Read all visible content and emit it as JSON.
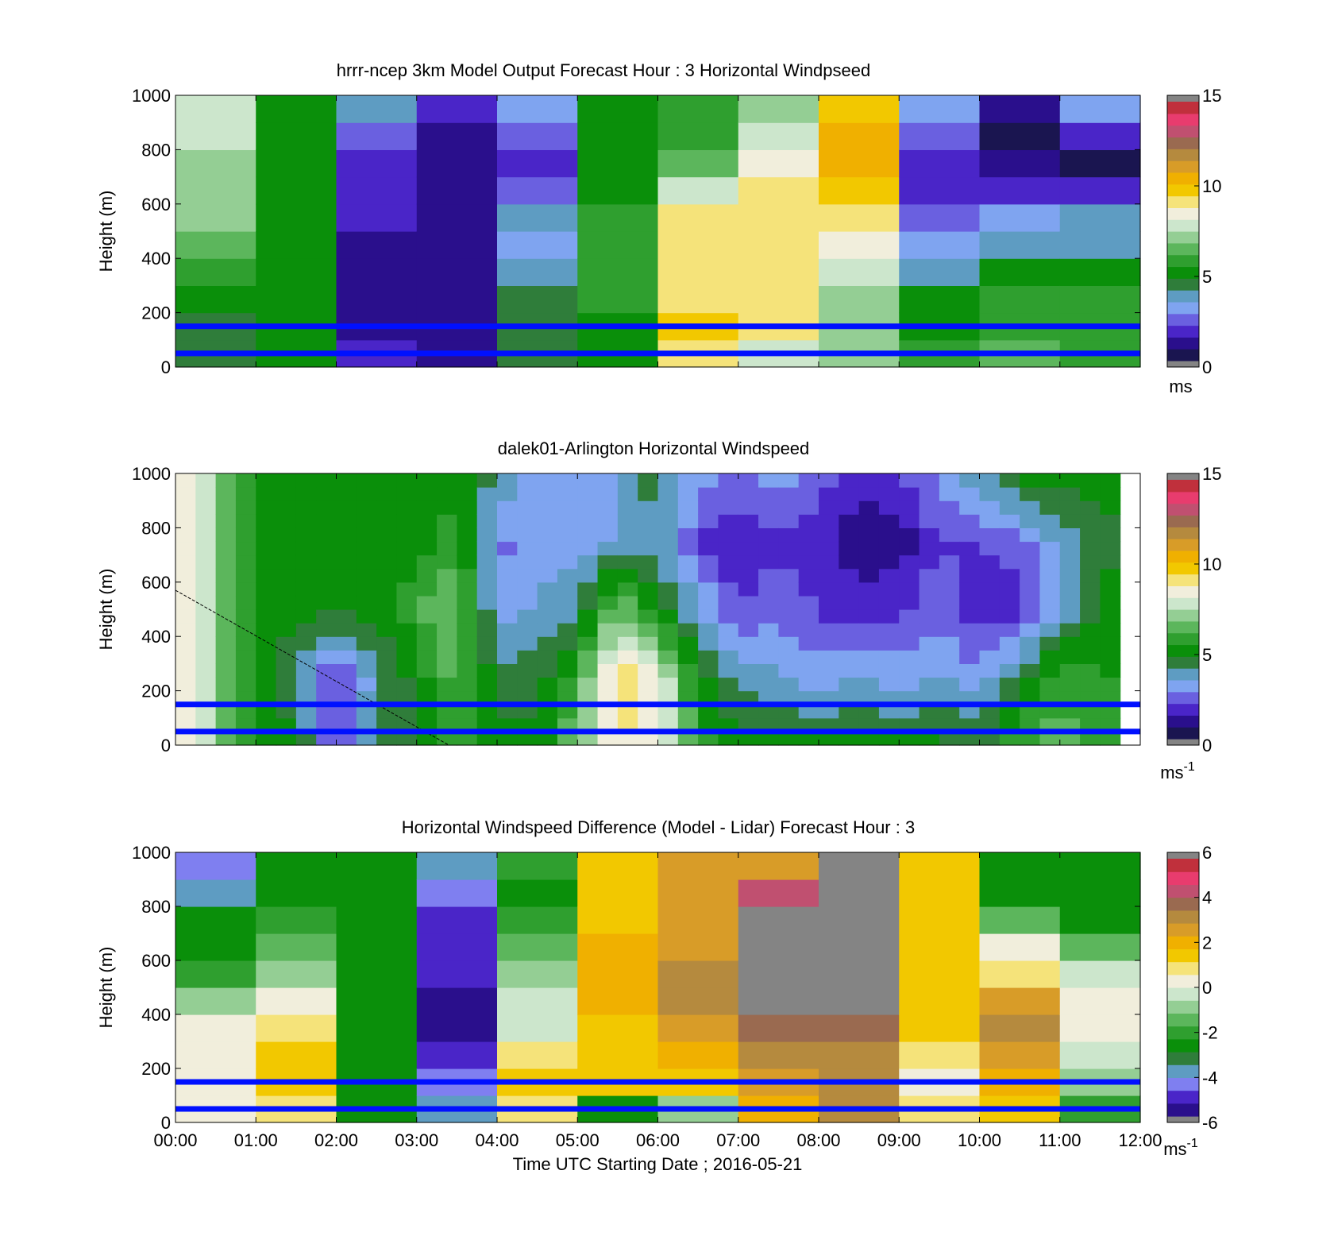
{
  "palettes": {
    "speed": [
      "#1a1550",
      "#2a0f8c",
      "#4a25c8",
      "#6a60e0",
      "#7fa4f0",
      "#5e9cc2",
      "#2f7d3a",
      "#0a8f0a",
      "#2f9f2f",
      "#5cb65c",
      "#94ce94",
      "#cce6cc",
      "#f1eedc",
      "#f5e37a",
      "#f2c800",
      "#f0b000",
      "#d89c28",
      "#b58a3e",
      "#9a6a50",
      "#c05070",
      "#e83c6e",
      "#c0303c"
    ],
    "diff": [
      "#2a0f8c",
      "#4a25c8",
      "#7f7ff0",
      "#5e9cc2",
      "#2f7d3a",
      "#0a8f0a",
      "#2f9f2f",
      "#5cb65c",
      "#94ce94",
      "#cce6cc",
      "#f1eedc",
      "#f5e37a",
      "#f2c800",
      "#f0b000",
      "#d89c28",
      "#b58a3e",
      "#9a6a50",
      "#c05070",
      "#e83c6e",
      "#c0303c"
    ]
  },
  "chart_data": [
    {
      "type": "heatmap",
      "title": "hrrr-ncep 3km Model Output   Forecast Hour : 3 Horizontal Windpseed",
      "ylabel": "Height (m)",
      "xlabel": "",
      "ylim": [
        0,
        1000
      ],
      "yticks": [
        "0",
        "200",
        "400",
        "600",
        "800",
        "1000"
      ],
      "x_hours": [
        0,
        1,
        2,
        3,
        4,
        5,
        6,
        7,
        8,
        9,
        10,
        11,
        12
      ],
      "clim": [
        0,
        15
      ],
      "colorbar_ticks": [
        "0",
        "5",
        "10",
        "15"
      ],
      "colorbar_unit": "ms",
      "reference_lines_m": [
        50,
        150
      ],
      "columns": [
        {
          "t": [
            0,
            1
          ],
          "v": [
            4.5,
            4.5,
            5,
            5.5,
            6.5,
            7,
            7,
            7,
            8,
            8
          ]
        },
        {
          "t": [
            1,
            2
          ],
          "v": [
            5,
            5,
            5,
            5,
            5,
            5,
            5,
            5,
            5,
            5
          ]
        },
        {
          "t": [
            2,
            3
          ],
          "v": [
            1.5,
            1.2,
            1.2,
            1.2,
            1.3,
            1.4,
            1.6,
            2,
            2.5,
            3.5
          ]
        },
        {
          "t": [
            3,
            4
          ],
          "v": [
            0.8,
            0.8,
            0.8,
            0.8,
            0.8,
            0.9,
            1,
            1.2,
            1.2,
            1.4
          ]
        },
        {
          "t": [
            4,
            5
          ],
          "v": [
            4.5,
            4.5,
            4.5,
            4,
            3.3,
            3.5,
            2.5,
            2,
            2.5,
            3
          ]
        },
        {
          "t": [
            5,
            6
          ],
          "v": [
            5,
            5,
            5.5,
            6,
            6,
            5.5,
            5,
            5,
            5,
            5
          ]
        },
        {
          "t": [
            6,
            7
          ],
          "v": [
            9,
            10,
            9.5,
            9,
            9,
            9,
            8,
            6.5,
            6,
            6
          ]
        },
        {
          "t": [
            7,
            8
          ],
          "v": [
            8,
            9,
            9,
            9,
            9,
            9,
            9,
            8.5,
            7.5,
            7
          ]
        },
        {
          "t": [
            8,
            9
          ],
          "v": [
            7,
            7,
            7,
            7.5,
            8.5,
            9,
            10,
            10.5,
            10.5,
            10
          ]
        },
        {
          "t": [
            9,
            10
          ],
          "v": [
            5.5,
            5,
            5,
            3.5,
            3,
            2.5,
            2,
            2,
            2.5,
            3
          ]
        },
        {
          "t": [
            10,
            11
          ],
          "v": [
            6.5,
            6,
            5.5,
            5,
            3.5,
            3,
            2,
            1.2,
            0.5,
            1
          ]
        },
        {
          "t": [
            11,
            12
          ],
          "v": [
            6,
            6,
            5.5,
            5,
            3.5,
            3.5,
            1.5,
            0.5,
            2,
            3
          ]
        }
      ]
    },
    {
      "type": "heatmap",
      "title": "dalek01-Arlington  Horizontal Windspeed",
      "ylabel": "Height (m)",
      "xlabel": "",
      "ylim": [
        0,
        1000
      ],
      "yticks": [
        "0",
        "200",
        "400",
        "600",
        "800",
        "1000"
      ],
      "x_hours": [
        0,
        1,
        2,
        3,
        4,
        5,
        6,
        7,
        8,
        9,
        10,
        11,
        12
      ],
      "clim": [
        0,
        15
      ],
      "colorbar_ticks": [
        "0",
        "5",
        "10",
        "15"
      ],
      "colorbar_unit": "ms",
      "colorbar_unit_sup": "-1",
      "reference_lines_m": [
        50,
        150
      ],
      "time_step_h": 0.25,
      "data_end_h": 11.75,
      "profile_anchors_h": [
        0,
        0.5,
        1,
        1.5,
        2,
        2.5,
        3,
        3.5,
        4,
        4.5,
        5,
        5.5,
        6,
        6.5,
        7,
        7.5,
        8,
        8.5,
        9,
        9.5,
        10,
        10.5,
        11,
        11.5,
        12
      ],
      "profile_anchors": [
        [
          9,
          9,
          9,
          9,
          9
        ],
        [
          7,
          7,
          7,
          7,
          7
        ],
        [
          5,
          5,
          5,
          5,
          5
        ],
        [
          5,
          4,
          5,
          5,
          5
        ],
        [
          2,
          1.5,
          5,
          5,
          5
        ],
        [
          4,
          4,
          5,
          5,
          5
        ],
        [
          5,
          5,
          6,
          5,
          5
        ],
        [
          6,
          6.5,
          7,
          6,
          5
        ],
        [
          5,
          4.5,
          3,
          2.5,
          4
        ],
        [
          5,
          4.5,
          3.5,
          3,
          3
        ],
        [
          7,
          6,
          4,
          3,
          3
        ],
        [
          9,
          9.5,
          7,
          3.5,
          3.5
        ],
        [
          8,
          8.5,
          5,
          4,
          4.5
        ],
        [
          6,
          5,
          3.5,
          2,
          3
        ],
        [
          5,
          4,
          2,
          1.5,
          2.5
        ],
        [
          5,
          3.5,
          2.5,
          2,
          3
        ],
        [
          5,
          3,
          2,
          1.5,
          2.5
        ],
        [
          5,
          3.5,
          1.5,
          1,
          1.5
        ],
        [
          5,
          3,
          2,
          1,
          2
        ],
        [
          5,
          3.5,
          2.5,
          2,
          3
        ],
        [
          4.5,
          3,
          1.5,
          2,
          4
        ],
        [
          6,
          4.5,
          1.5,
          2.5,
          5
        ],
        [
          6.5,
          6,
          3.5,
          3.5,
          5
        ],
        [
          6,
          5.5,
          5,
          4.5,
          5
        ],
        [
          6,
          5.5,
          5,
          5,
          5
        ]
      ],
      "annotation_line": {
        "from": [
          0,
          570
        ],
        "to": [
          3.4,
          0
        ]
      }
    },
    {
      "type": "heatmap",
      "title": "Horizontal Windspeed Difference (Model - Lidar) Forecast Hour : 3",
      "ylabel": "Height (m)",
      "xlabel": "Time UTC  Starting Date ; 2016-05-21",
      "ylim": [
        0,
        1000
      ],
      "yticks": [
        "0",
        "200",
        "400",
        "600",
        "800",
        "1000"
      ],
      "xticks": [
        "00:00",
        "01:00",
        "02:00",
        "03:00",
        "04:00",
        "05:00",
        "06:00",
        "07:00",
        "08:00",
        "09:00",
        "10:00",
        "11:00",
        "12:00"
      ],
      "clim": [
        -6,
        6
      ],
      "colorbar_ticks": [
        "-6",
        "-4",
        "-2",
        "0",
        "2",
        "4",
        "6"
      ],
      "colorbar_unit": "ms",
      "colorbar_unit_sup": "-1",
      "reference_lines_m": [
        50,
        150
      ],
      "columns": [
        {
          "t": [
            0,
            1
          ],
          "v": [
            0,
            0.5,
            0.5,
            0,
            -1,
            -2,
            -3,
            -3,
            -4,
            -4.5
          ]
        },
        {
          "t": [
            1,
            2
          ],
          "v": [
            1,
            1.5,
            1.5,
            1,
            0.5,
            -1,
            -1.5,
            -2,
            -2.5,
            -3
          ]
        },
        {
          "t": [
            2,
            3
          ],
          "v": [
            -3,
            -3,
            -3,
            -3,
            -3,
            -3,
            -3,
            -3,
            -3,
            -3
          ]
        },
        {
          "t": [
            3,
            4
          ],
          "v": [
            -4,
            -4.5,
            -5,
            -5.5,
            -5.5,
            -5,
            -5,
            -5,
            -4.5,
            -4
          ]
        },
        {
          "t": [
            4,
            5
          ],
          "v": [
            1,
            1.5,
            1,
            -0.5,
            -0.5,
            -1,
            -1.5,
            -2,
            -2.5,
            -2
          ]
        },
        {
          "t": [
            5,
            6
          ],
          "v": [
            -3,
            1.5,
            1.5,
            1.5,
            2,
            2,
            2,
            1.5,
            1.5,
            1.5
          ]
        },
        {
          "t": [
            6,
            7
          ],
          "v": [
            -1,
            1.5,
            2,
            2.5,
            3,
            3,
            2.5,
            2.5,
            2.5,
            2.5
          ]
        },
        {
          "t": [
            7,
            8
          ],
          "v": [
            2,
            2.5,
            3,
            4,
            8,
            8,
            8,
            8,
            4.5,
            2.5
          ]
        },
        {
          "t": [
            8,
            9
          ],
          "v": [
            3,
            3,
            3,
            4,
            8,
            8,
            8,
            8,
            8,
            8
          ]
        },
        {
          "t": [
            9,
            10
          ],
          "v": [
            1,
            0,
            1,
            1.5,
            1.5,
            1.5,
            1.5,
            1.5,
            1.5,
            1.5
          ]
        },
        {
          "t": [
            10,
            11
          ],
          "v": [
            1.5,
            2,
            2.5,
            3,
            2.5,
            1,
            0,
            -1.5,
            -3,
            -3
          ]
        },
        {
          "t": [
            11,
            12
          ],
          "v": [
            -2,
            -1,
            -0.5,
            0.5,
            0,
            -0.5,
            -1.5,
            -2.5,
            -3,
            -3
          ]
        }
      ]
    }
  ]
}
